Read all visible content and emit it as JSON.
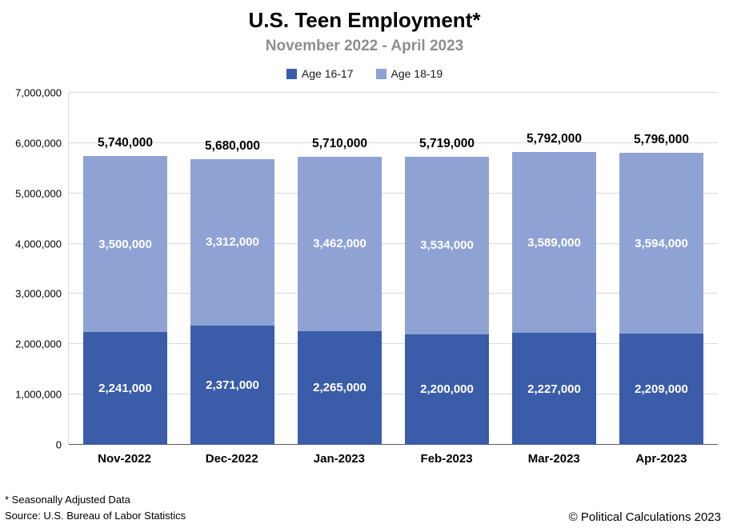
{
  "title": "U.S. Teen Employment*",
  "subtitle": "November 2022 - April 2023",
  "footnotes": {
    "line1": "* Seasonally Adjusted Data",
    "line2": "Source: U.S. Bureau of Labor Statistics"
  },
  "copyright": "© Political Calculations 2023",
  "chart_data": {
    "type": "bar",
    "stacked": true,
    "title": "U.S. Teen Employment*",
    "subtitle": "November 2022 - April 2023",
    "categories": [
      "Nov-2022",
      "Dec-2022",
      "Jan-2023",
      "Feb-2023",
      "Mar-2023",
      "Apr-2023"
    ],
    "series": [
      {
        "name": "Age 16-17",
        "color": "#3b5ca8",
        "values": [
          2241000,
          2371000,
          2265000,
          2200000,
          2227000,
          2209000
        ],
        "labels": [
          "2,241,000",
          "2,371,000",
          "2,265,000",
          "2,200,000",
          "2,227,000",
          "2,209,000"
        ]
      },
      {
        "name": "Age 18-19",
        "color": "#8fa2d4",
        "values": [
          3500000,
          3312000,
          3462000,
          3534000,
          3589000,
          3594000
        ],
        "labels": [
          "3,500,000",
          "3,312,000",
          "3,462,000",
          "3,534,000",
          "3,589,000",
          "3,594,000"
        ]
      }
    ],
    "totals": [
      5740000,
      5680000,
      5710000,
      5719000,
      5792000,
      5796000
    ],
    "total_labels": [
      "5,740,000",
      "5,680,000",
      "5,710,000",
      "5,719,000",
      "5,792,000",
      "5,796,000"
    ],
    "ylim": [
      0,
      7000000
    ],
    "ytick_step": 1000000,
    "ytick_labels": [
      "0",
      "1,000,000",
      "2,000,000",
      "3,000,000",
      "4,000,000",
      "5,000,000",
      "6,000,000",
      "7,000,000"
    ],
    "grid": true,
    "legend_position": "top"
  }
}
